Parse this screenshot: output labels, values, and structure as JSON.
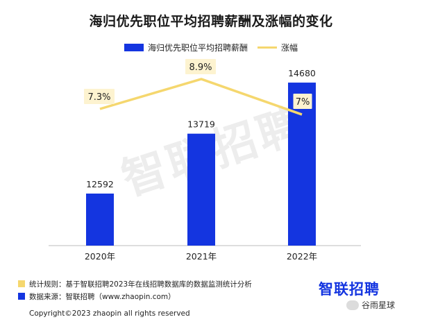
{
  "title": "海归优先职位平均招聘薪酬及涨幅的变化",
  "legend": {
    "bar_label": "海归优先职位平均招聘薪酬",
    "line_label": "涨幅"
  },
  "watermark": "智联招聘",
  "notes": [
    {
      "text": "统计规则：基于智联招聘2023年在线招聘数据库的数据监测统计分析",
      "color": "#f5d76e"
    },
    {
      "text": "数据来源：智联招聘（www.zhaopin.com）",
      "color": "#1435e0"
    }
  ],
  "logo": "智联招聘",
  "copyright": "Copyright©2023 zhaopin all rights reserved",
  "account": "谷雨星球",
  "colors": {
    "bar": "#1435e0",
    "line": "#f5d76e",
    "label_bg": "#fdf3d0"
  },
  "chart_data": {
    "type": "bar+line",
    "categories": [
      "2020年",
      "2021年",
      "2022年"
    ],
    "series": [
      {
        "name": "海归优先职位平均招聘薪酬",
        "type": "bar",
        "values": [
          12592,
          13719,
          14680
        ],
        "labels": [
          "12592",
          "13719",
          "14680"
        ]
      },
      {
        "name": "涨幅",
        "type": "line",
        "values": [
          7.3,
          8.9,
          7.0
        ],
        "labels": [
          "7.3%",
          "8.9%",
          "7%"
        ]
      }
    ]
  }
}
